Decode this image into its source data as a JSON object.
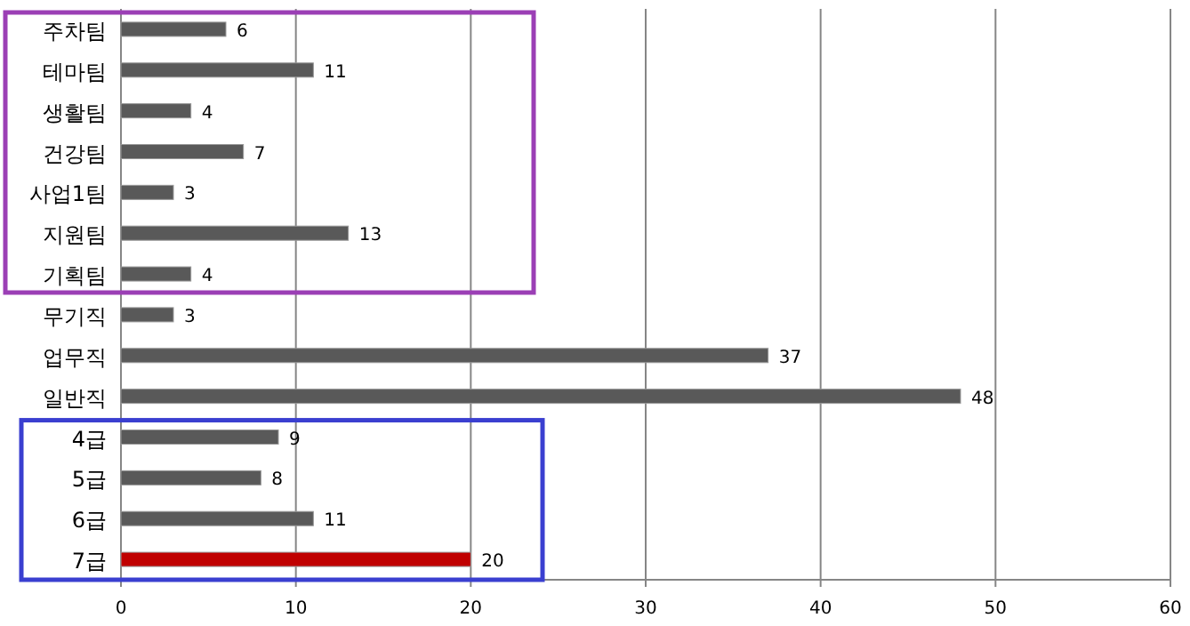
{
  "chart_data": {
    "type": "bar",
    "orientation": "horizontal",
    "categories": [
      "주차팀",
      "테마팀",
      "생활팀",
      "건강팀",
      "사업1팀",
      "지원팀",
      "기획팀",
      "무기직",
      "업무직",
      "일반직",
      "4급",
      "5급",
      "6급",
      "7급"
    ],
    "values": [
      6,
      11,
      4,
      7,
      3,
      13,
      4,
      3,
      37,
      48,
      9,
      8,
      11,
      20
    ],
    "colors": [
      "#595959",
      "#595959",
      "#595959",
      "#595959",
      "#595959",
      "#595959",
      "#595959",
      "#595959",
      "#595959",
      "#595959",
      "#595959",
      "#595959",
      "#595959",
      "#c00000"
    ],
    "xlim": [
      0,
      60
    ],
    "xticks": [
      0,
      10,
      20,
      30,
      40,
      50,
      60
    ],
    "grid": "x",
    "data_labels": true
  }
}
